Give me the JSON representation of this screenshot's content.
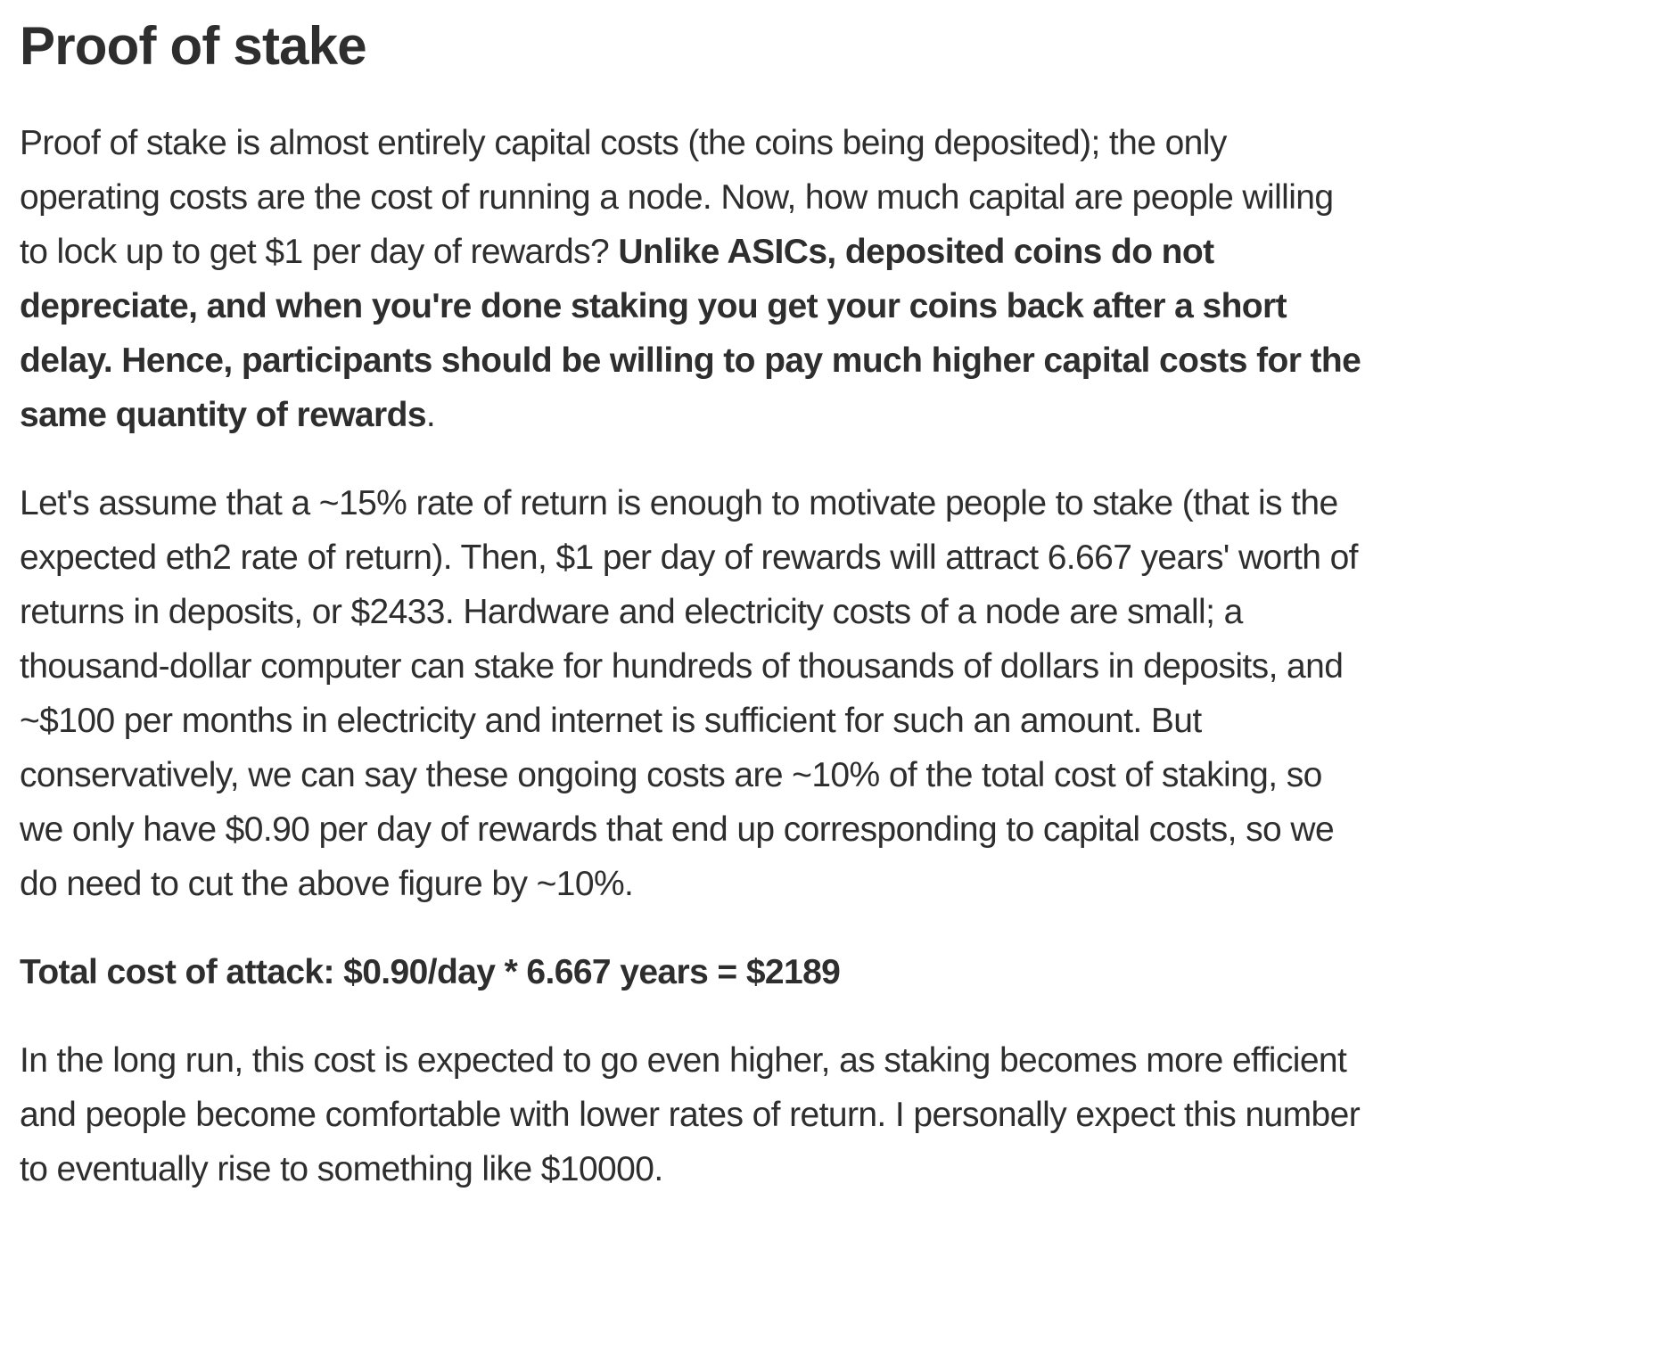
{
  "colors": {
    "background": "#ffffff",
    "text": "#2e2e2e"
  },
  "article": {
    "title": "Proof of stake",
    "intro": {
      "normal_lead": "Proof of stake is almost entirely capital costs (the coins being deposited); the only operating costs are the cost of running a node. Now, how much capital are people willing to lock up to get $1 per day of rewards? ",
      "bold_emphasis": "Unlike ASICs, deposited coins do not depreciate, and when you're done staking you get your coins back after a short delay. Hence, participants should be willing to pay much higher capital costs for the same quantity of rewards",
      "normal_tail": "."
    },
    "analysis": "Let's assume that a ~15% rate of return is enough to motivate people to stake (that is the expected eth2 rate of return). Then, $1 per day of rewards will attract 6.667 years' worth of returns in deposits, or $2433. Hardware and electricity costs of a node are small; a thousand-dollar computer can stake for hundreds of thousands of dollars in deposits, and ~$100 per months in electricity and internet is sufficient for such an amount. But conservatively, we can say these ongoing costs are ~10% of the total cost of staking, so we only have $0.90 per day of rewards that end up corresponding to capital costs, so we do need to cut the above figure by ~10%.",
    "total_cost_of_attack": "Total cost of attack: $0.90/day * 6.667 years = $2189",
    "outlook": "In the long run, this cost is expected to go even higher, as staking becomes more efficient and people become comfortable with lower rates of return. I personally expect this number to eventually rise to something like $10000."
  }
}
